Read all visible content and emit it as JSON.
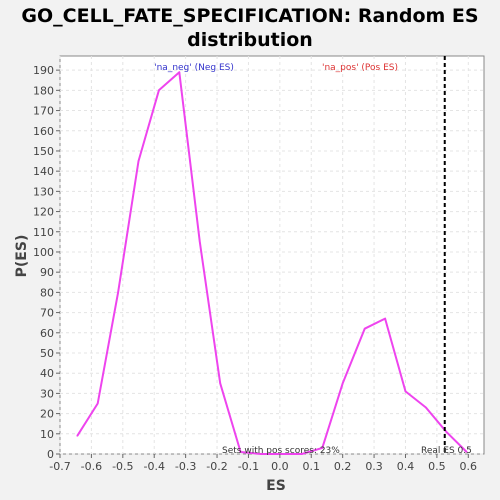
{
  "chart_data": {
    "type": "line",
    "title_line1": "GO_CELL_FATE_SPECIFICATION: Random ES",
    "title_line2": "distribution",
    "xlabel": "ES",
    "ylabel": "P(ES)",
    "xlim": [
      -0.7,
      0.65
    ],
    "ylim": [
      0,
      197
    ],
    "x_ticks": [
      "-0.7",
      "-0.6",
      "-0.5",
      "-0.4",
      "-0.3",
      "-0.2",
      "-0.1",
      "0.0",
      "0.1",
      "0.2",
      "0.3",
      "0.4",
      "0.5",
      "0.6"
    ],
    "y_ticks": [
      "0",
      "10",
      "20",
      "30",
      "40",
      "50",
      "60",
      "70",
      "80",
      "90",
      "100",
      "110",
      "120",
      "130",
      "140",
      "150",
      "160",
      "170",
      "180",
      "190"
    ],
    "grid": true,
    "series": [
      {
        "color": "#ee44ee",
        "x": [
          -0.645,
          -0.58,
          -0.515,
          -0.45,
          -0.385,
          -0.32,
          -0.255,
          -0.19,
          -0.125,
          -0.06,
          0.0,
          0.07,
          0.135,
          0.2,
          0.27,
          0.335,
          0.4,
          0.465,
          0.53,
          0.595
        ],
        "y": [
          9,
          25,
          80,
          145,
          180,
          189,
          105,
          35,
          1,
          0,
          0,
          0,
          3,
          35,
          62,
          67,
          31,
          23,
          11,
          1
        ]
      }
    ],
    "real_es": 0.525,
    "annotations": {
      "neg_label": "'na_neg' (Neg ES)",
      "pos_label": "'na_pos' (Pos ES)",
      "sets_label": "Sets with pos scores: 23%",
      "real_es_label": "Real ES 0.5"
    },
    "colors": {
      "neg": "#3333cc",
      "pos": "#dd3333",
      "line": "#ee44ee"
    }
  }
}
